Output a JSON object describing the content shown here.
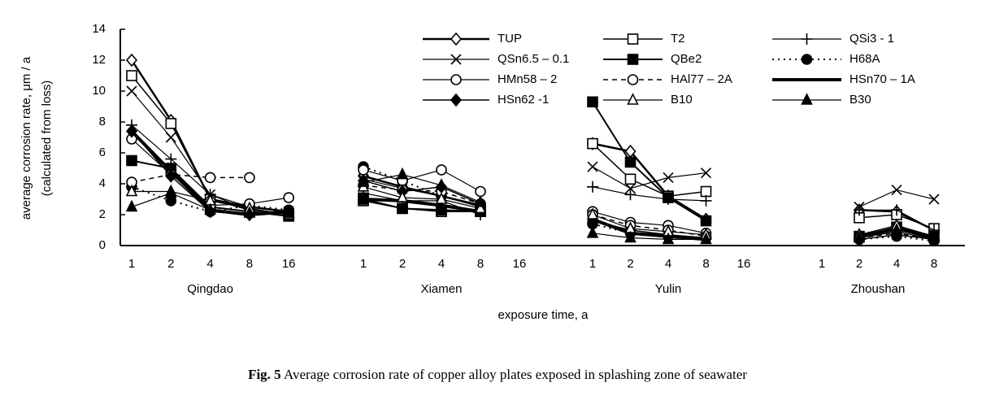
{
  "chart_data": {
    "type": "line",
    "ylabel": [
      "average corrosion rate, μm / a",
      "(calculated from loss)"
    ],
    "xlabel": "exposure time, a",
    "caption": {
      "label": "Fig. 5",
      "text": "Average corrosion rate of copper alloy plates exposed in splashing zone of seawater"
    },
    "groups": [
      {
        "name": "Qingdao",
        "categories": [
          "1",
          "2",
          "4",
          "8",
          "16"
        ]
      },
      {
        "name": "Xiamen",
        "categories": [
          "1",
          "2",
          "4",
          "8",
          "16"
        ]
      },
      {
        "name": "Yulin",
        "categories": [
          "1",
          "2",
          "4",
          "8",
          "16"
        ]
      },
      {
        "name": "Zhoushan",
        "categories": [
          "1",
          "2",
          "4",
          "8"
        ]
      }
    ],
    "ylim": [
      0,
      14
    ],
    "yticks": [
      0,
      2,
      4,
      6,
      8,
      10,
      12,
      14
    ],
    "series": [
      {
        "name": "TUP",
        "color": "#000",
        "marker": "diamond-open",
        "dash": "solid",
        "width": 2.5,
        "values": [
          12.0,
          8.1,
          3.0,
          2.5,
          2.2,
          4.5,
          3.8,
          3.2,
          2.6,
          null,
          6.6,
          6.1,
          3.2,
          1.7,
          null,
          null,
          2.3,
          2.2,
          1.0
        ]
      },
      {
        "name": "T2",
        "color": "#000",
        "marker": "square-open",
        "dash": "solid",
        "width": 1.5,
        "values": [
          11.0,
          7.9,
          3.0,
          2.3,
          2.0,
          2.9,
          2.4,
          2.2,
          2.2,
          null,
          6.6,
          4.3,
          3.2,
          3.5,
          null,
          null,
          1.8,
          2.0,
          1.1
        ]
      },
      {
        "name": "QSi3 - 1",
        "color": "#000",
        "marker": "plus",
        "dash": "solid",
        "width": 1.2,
        "values": [
          7.8,
          5.6,
          3.3,
          2.3,
          2.1,
          3.4,
          2.9,
          2.9,
          2.0,
          null,
          3.8,
          3.3,
          3.0,
          2.9,
          null,
          null,
          2.3,
          2.3,
          1.0
        ]
      },
      {
        "name": "QSn6.5 – 0.1",
        "color": "#000",
        "marker": "cross",
        "dash": "solid",
        "width": 1.2,
        "values": [
          10.0,
          7.0,
          3.3,
          2.5,
          2.2,
          4.3,
          3.7,
          3.2,
          2.5,
          null,
          5.1,
          3.7,
          4.4,
          4.7,
          null,
          null,
          2.5,
          3.6,
          3.0
        ]
      },
      {
        "name": "QBe2",
        "color": "#000",
        "marker": "square-filled",
        "dash": "solid",
        "width": 2,
        "values": [
          5.5,
          5.0,
          2.5,
          2.2,
          1.9,
          3.0,
          2.4,
          2.3,
          2.2,
          null,
          9.3,
          5.4,
          3.1,
          1.6,
          null,
          null,
          0.6,
          1.2,
          0.6
        ]
      },
      {
        "name": "H68A",
        "color": "#000",
        "marker": "circle-filled",
        "dash": "dotted",
        "width": 2,
        "values": [
          3.8,
          2.9,
          2.2,
          2.6,
          2.3,
          5.1,
          4.2,
          3.2,
          2.6,
          null,
          1.4,
          0.8,
          0.6,
          0.5,
          null,
          null,
          0.4,
          0.6,
          0.3
        ]
      },
      {
        "name": "HMn58 – 2",
        "color": "#000",
        "marker": "circle-open",
        "dash": "solid",
        "width": 1.2,
        "values": [
          6.9,
          4.6,
          2.6,
          2.7,
          3.1,
          4.9,
          4.2,
          4.9,
          3.5,
          null,
          2.2,
          1.5,
          1.3,
          0.8,
          null,
          null,
          0.5,
          0.9,
          0.4
        ]
      },
      {
        "name": "HAl77 – 2A",
        "color": "#000",
        "marker": "circle-open",
        "dash": "dashed",
        "width": 1.5,
        "values": [
          4.1,
          4.6,
          4.4,
          4.4,
          null,
          3.9,
          3.6,
          3.5,
          2.7,
          null,
          2.0,
          1.3,
          1.0,
          0.6,
          null,
          null,
          0.5,
          0.8,
          0.4
        ]
      },
      {
        "name": "HSn70 – 1A",
        "color": "#000",
        "marker": "none",
        "dash": "solid",
        "width": 4,
        "values": [
          7.4,
          4.8,
          2.3,
          2.0,
          2.2,
          3.0,
          2.9,
          2.6,
          2.2,
          null,
          1.7,
          0.8,
          0.6,
          0.4,
          null,
          null,
          0.6,
          1.1,
          0.5
        ]
      },
      {
        "name": "HSn62 -1",
        "color": "#000",
        "marker": "diamond-filled",
        "dash": "solid",
        "width": 1.5,
        "values": [
          7.4,
          4.5,
          2.2,
          2.0,
          2.1,
          4.2,
          3.5,
          3.8,
          2.7,
          null,
          1.6,
          1.0,
          0.7,
          0.5,
          null,
          null,
          0.4,
          0.7,
          0.4
        ]
      },
      {
        "name": "B10",
        "color": "#000",
        "marker": "triangle-open",
        "dash": "solid",
        "width": 1.2,
        "values": [
          3.5,
          3.5,
          2.9,
          2.4,
          2.0,
          3.8,
          3.1,
          3.0,
          2.4,
          null,
          2.0,
          1.1,
          0.9,
          0.7,
          null,
          null,
          0.7,
          1.3,
          0.6
        ]
      },
      {
        "name": "B30",
        "color": "#000",
        "marker": "triangle-filled",
        "dash": "solid",
        "width": 1.2,
        "values": [
          2.5,
          3.4,
          2.3,
          2.1,
          2.1,
          4.1,
          4.6,
          3.9,
          2.8,
          null,
          0.8,
          0.5,
          0.4,
          0.4,
          null,
          null,
          0.5,
          1.0,
          0.5
        ]
      }
    ]
  }
}
